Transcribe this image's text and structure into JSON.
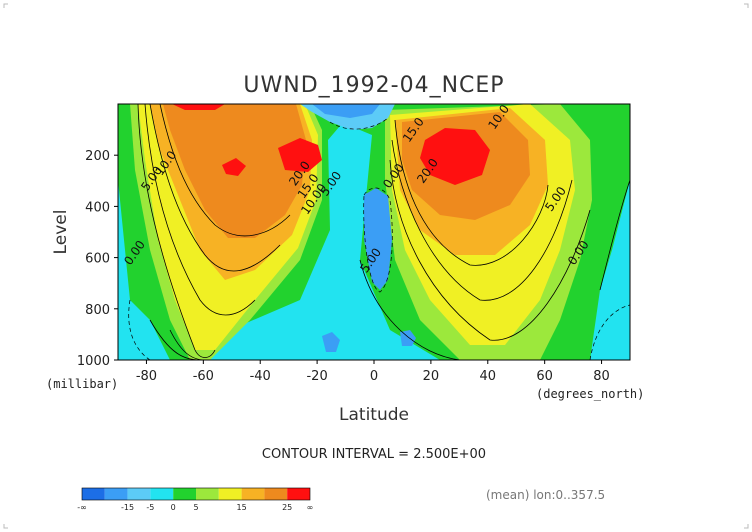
{
  "chart_data": {
    "type": "heatmap",
    "title": "UWND_1992-04_NCEP",
    "xlabel": "Latitude",
    "ylabel": "Level",
    "x_unit": "(degrees_north)",
    "y_unit": "(millibar)",
    "xlim": [
      -90,
      90
    ],
    "ylim": [
      1000,
      0
    ],
    "x_ticks": [
      -80,
      -60,
      -40,
      -20,
      0,
      20,
      40,
      60,
      80
    ],
    "y_ticks": [
      200,
      400,
      600,
      800,
      1000
    ],
    "contour_interval_text": "CONTOUR INTERVAL = 2.500E+00",
    "mean_text": "(mean) lon:0..357.5",
    "contour_labels": [
      {
        "text": "10.0",
        "lat": -72,
        "lev": 240
      },
      {
        "text": "5.00",
        "lat": -77,
        "lev": 300
      },
      {
        "text": "0.00",
        "lat": -83,
        "lev": 590
      },
      {
        "text": "20.0",
        "lat": -25,
        "lev": 280
      },
      {
        "text": "15.0",
        "lat": -22,
        "lev": 330
      },
      {
        "text": "10.00",
        "lat": -20,
        "lev": 380
      },
      {
        "text": "5.00",
        "lat": -14,
        "lev": 320
      },
      {
        "text": "15.0",
        "lat": 15,
        "lev": 110
      },
      {
        "text": "10.0",
        "lat": 45,
        "lev": 60
      },
      {
        "text": "20.0",
        "lat": 20,
        "lev": 270
      },
      {
        "text": "0.00",
        "lat": 8,
        "lev": 290
      },
      {
        "text": "5.00",
        "lat": 0,
        "lev": 620
      },
      {
        "text": "5.00",
        "lat": 65,
        "lev": 380
      },
      {
        "text": "0.00",
        "lat": 73,
        "lev": 590
      }
    ],
    "legend": {
      "labels": [
        "-∞",
        "-15",
        "-5",
        "0",
        "5",
        "15",
        "25",
        "∞"
      ],
      "colors": [
        "#1c6ee6",
        "#3b9ef5",
        "#5ccbf7",
        "#22e3f0",
        "#22d22e",
        "#9ce83c",
        "#f0f024",
        "#f7b224",
        "#ee8a1e",
        "#ff1010"
      ]
    }
  }
}
